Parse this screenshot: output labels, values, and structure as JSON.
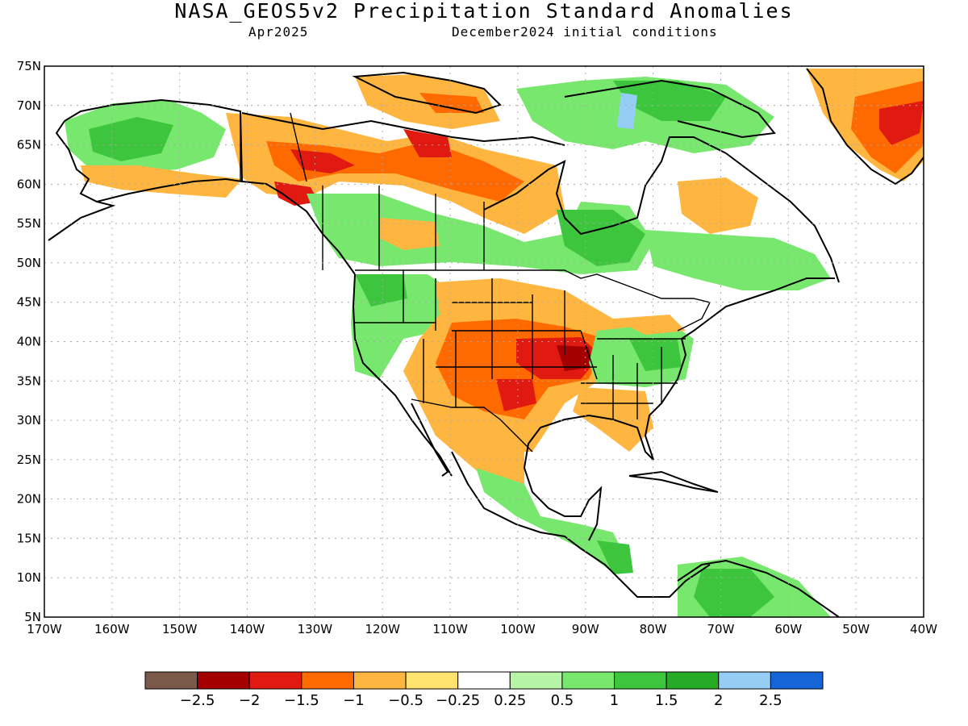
{
  "title": "NASA_GEOS5v2 Precipitation Standard Anomalies",
  "subtitle_month": "Apr2025",
  "subtitle_init": "December2024 initial conditions",
  "lat_ticks": [
    "75N",
    "70N",
    "65N",
    "60N",
    "55N",
    "50N",
    "45N",
    "40N",
    "35N",
    "30N",
    "25N",
    "20N",
    "15N",
    "10N",
    "5N"
  ],
  "lon_ticks": [
    "170W",
    "160W",
    "150W",
    "140W",
    "130W",
    "120W",
    "110W",
    "100W",
    "90W",
    "80W",
    "70W",
    "60W",
    "50W",
    "40W"
  ],
  "colorbar": {
    "colors": [
      "#7b5a4a",
      "#a50000",
      "#e01a10",
      "#ff6a00",
      "#ffb640",
      "#ffe36e",
      "#ffffff",
      "#b6f5a6",
      "#78e76e",
      "#3dc63d",
      "#25ab25",
      "#96cdf5",
      "#1565d8"
    ],
    "labels": [
      "-2.5",
      "-2",
      "-1.5",
      "-1",
      "-0.5",
      "-0.25",
      "0.25",
      "0.5",
      "1",
      "1.5",
      "2",
      "2.5"
    ]
  },
  "anomaly_colors": {
    "dry_moderate": "#ffb640",
    "dry_strong": "#ff6a00",
    "dry_severe": "#e01a10",
    "dry_extreme": "#a50000",
    "dry_light": "#ffe36e",
    "wet_light": "#b6f5a6",
    "wet_moderate": "#78e76e",
    "wet_strong": "#3dc63d",
    "wet_very_strong": "#25ab25",
    "wet_extreme": "#96cdf5"
  }
}
